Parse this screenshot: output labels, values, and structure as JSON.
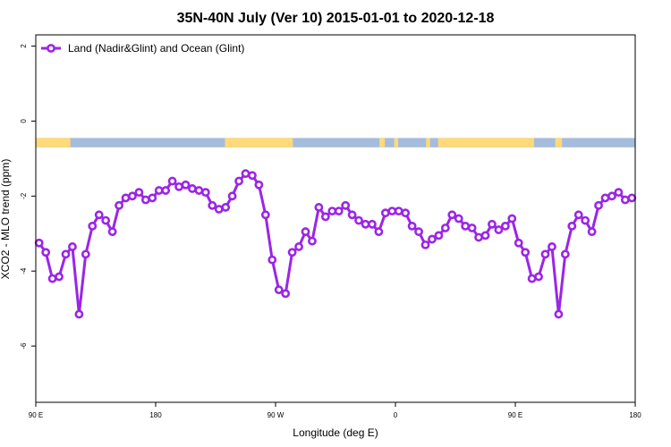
{
  "chart_data": {
    "type": "line",
    "title": "35N-40N July (Ver 10)   2015-01-01 to 2020-12-18",
    "xlabel": "Longitude (deg E)",
    "ylabel": "XCO2 - MLO trend (ppm)",
    "xlim": [
      90,
      540
    ],
    "ylim": [
      -7.5,
      2.3
    ],
    "x_ticks": [
      {
        "value": 90,
        "label": "90 E"
      },
      {
        "value": 180,
        "label": "180"
      },
      {
        "value": 270,
        "label": "90 W"
      },
      {
        "value": 360,
        "label": "0"
      },
      {
        "value": 450,
        "label": "90 E"
      },
      {
        "value": 540,
        "label": "180"
      }
    ],
    "y_ticks": [
      {
        "value": 2,
        "label": "2"
      },
      {
        "value": 0,
        "label": "0"
      },
      {
        "value": -2,
        "label": "-2"
      },
      {
        "value": -4,
        "label": "-4"
      },
      {
        "value": -6,
        "label": "-6"
      }
    ],
    "legend_position": "top-left",
    "grid": false,
    "series": [
      {
        "name": "Land (Nadir&Glint) and Ocean (Glint)",
        "color": "#9b25e6",
        "x": [
          92.5,
          97.5,
          102.5,
          107.5,
          112.5,
          117.5,
          122.5,
          127.5,
          132.5,
          137.5,
          142.5,
          147.5,
          152.5,
          157.5,
          162.5,
          167.5,
          172.5,
          177.5,
          182.5,
          187.5,
          192.5,
          197.5,
          202.5,
          207.5,
          212.5,
          217.5,
          222.5,
          227.5,
          232.5,
          237.5,
          242.5,
          247.5,
          252.5,
          257.5,
          262.5,
          267.5,
          272.5,
          277.5,
          282.5,
          287.5,
          292.5,
          297.5,
          302.5,
          307.5,
          312.5,
          317.5,
          322.5,
          327.5,
          332.5,
          337.5,
          342.5,
          347.5,
          352.5,
          357.5,
          362.5,
          367.5,
          372.5,
          377.5,
          382.5,
          387.5,
          392.5,
          397.5,
          402.5,
          407.5,
          412.5,
          417.5,
          422.5,
          427.5,
          432.5,
          437.5,
          442.5,
          447.5,
          452.5,
          457.5,
          462.5,
          467.5,
          472.5,
          477.5,
          482.5,
          487.5,
          492.5,
          497.5,
          502.5,
          507.5,
          512.5,
          517.5,
          522.5,
          527.5,
          532.5,
          537.5
        ],
        "y": [
          -3.25,
          -3.5,
          -4.2,
          -4.15,
          -3.55,
          -3.35,
          -5.15,
          -3.55,
          -2.8,
          -2.5,
          -2.65,
          -2.95,
          -2.25,
          -2.05,
          -2.0,
          -1.9,
          -2.1,
          -2.05,
          -1.85,
          -1.85,
          -1.6,
          -1.75,
          -1.7,
          -1.8,
          -1.85,
          -1.9,
          -2.25,
          -2.35,
          -2.3,
          -2.0,
          -1.6,
          -1.4,
          -1.45,
          -1.7,
          -2.5,
          -3.7,
          -4.5,
          -4.6,
          -3.5,
          -3.35,
          -2.95,
          -3.2,
          -2.3,
          -2.55,
          -2.4,
          -2.4,
          -2.25,
          -2.5,
          -2.65,
          -2.75,
          -2.75,
          -2.95,
          -2.45,
          -2.4,
          -2.4,
          -2.45,
          -2.8,
          -2.95,
          -3.3,
          -3.15,
          -3.05,
          -2.85,
          -2.5,
          -2.6,
          -2.8,
          -2.85,
          -3.1,
          -3.05,
          -2.75,
          -2.9,
          -2.8,
          -2.6,
          -3.25,
          -3.5,
          -4.2,
          -4.15,
          -3.55,
          -3.35,
          -5.15,
          -3.55,
          -2.8,
          -2.5,
          -2.65,
          -2.95,
          -2.25,
          -2.05,
          -2.0,
          -1.9,
          -2.1,
          -2.05
        ]
      }
    ],
    "landmask": {
      "y_range": [
        -0.45,
        -0.7
      ],
      "land_color": "#ffd97a",
      "ocean_color": "#a5bcdc",
      "land_x_ranges": [
        [
          90,
          116
        ],
        [
          232,
          283
        ],
        [
          348,
          352
        ],
        [
          359,
          362
        ],
        [
          383,
          386
        ],
        [
          392,
          464
        ],
        [
          480,
          485
        ]
      ]
    }
  }
}
